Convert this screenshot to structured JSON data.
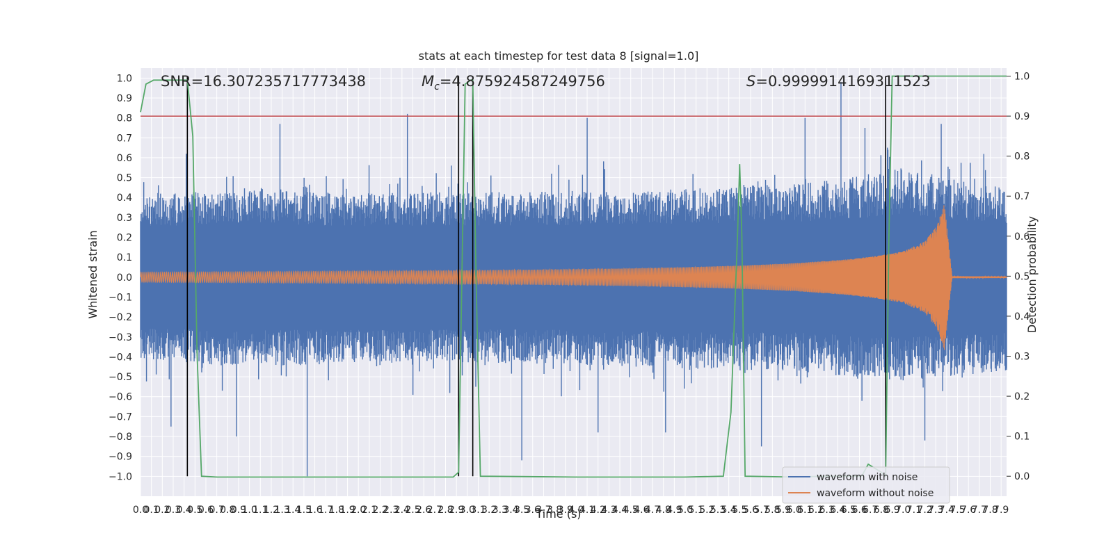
{
  "chart_data": {
    "type": "line",
    "title": "stats at each timestep for test data 8 [signal=1.0]",
    "xlabel": "Time (s)",
    "ylabel": "Whitened strain",
    "ylabel_right": "Detection probability",
    "xlim": [
      0.0,
      7.95
    ],
    "ylim": [
      -1.1,
      1.05
    ],
    "ylim_right": [
      -0.05,
      1.02
    ],
    "x_ticks": [
      "0.0",
      "0.1",
      "0.2",
      "0.3",
      "0.4",
      "0.5",
      "0.6",
      "0.7",
      "0.8",
      "0.9",
      "1.0",
      "1.1",
      "1.2",
      "1.3",
      "1.4",
      "1.5",
      "1.6",
      "1.7",
      "1.8",
      "1.9",
      "2.0",
      "2.1",
      "2.2",
      "2.3",
      "2.4",
      "2.5",
      "2.6",
      "2.7",
      "2.8",
      "2.9",
      "3.0",
      "3.1",
      "3.2",
      "3.3",
      "3.4",
      "3.5",
      "3.6",
      "3.7",
      "3.8",
      "3.9",
      "4.0",
      "4.1",
      "4.2",
      "4.3",
      "4.4",
      "4.5",
      "4.6",
      "4.7",
      "4.8",
      "4.9",
      "5.0",
      "5.1",
      "5.2",
      "5.3",
      "5.4",
      "5.5",
      "5.6",
      "5.7",
      "5.8",
      "5.9",
      "6.0",
      "6.1",
      "6.2",
      "6.3",
      "6.4",
      "6.5",
      "6.6",
      "6.7",
      "6.8",
      "6.9",
      "7.0",
      "7.1",
      "7.2",
      "7.3",
      "7.4",
      "7.5",
      "7.6",
      "7.7",
      "7.8",
      "7.9"
    ],
    "y_ticks_left": [
      "1.0",
      "0.9",
      "0.8",
      "0.7",
      "0.6",
      "0.5",
      "0.4",
      "0.3",
      "0.2",
      "0.1",
      "0.0",
      "−0.1",
      "−0.2",
      "−0.3",
      "−0.4",
      "−0.5",
      "−0.6",
      "−0.7",
      "−0.8",
      "−0.9",
      "−1.0"
    ],
    "y_ticks_right": [
      "1.0",
      "0.9",
      "0.8",
      "0.7",
      "0.6",
      "0.5",
      "0.4",
      "0.3",
      "0.2",
      "0.1",
      "0.0"
    ],
    "annotations": {
      "snr": "SNR=16.307235717773438",
      "mc": "=4.875924587249756",
      "mc_symbol": "M",
      "mc_sub": "c",
      "s": "=0.9999914169311523",
      "s_symbol": "S"
    },
    "legend": [
      "waveform with noise",
      "waveform without noise"
    ],
    "threshold_right": 0.9,
    "vertical_lines_x": [
      0.43,
      2.92,
      3.05,
      6.84
    ],
    "noise": {
      "name": "waveform with noise",
      "envelope_x": [
        0.0,
        1.0,
        2.0,
        3.0,
        4.0,
        5.0,
        6.0,
        6.5,
        7.0,
        7.4,
        7.95
      ],
      "envelope_top": [
        0.42,
        0.45,
        0.42,
        0.43,
        0.43,
        0.45,
        0.47,
        0.5,
        0.55,
        0.5,
        0.45
      ],
      "envelope_bottom": [
        -0.42,
        -0.45,
        -0.43,
        -0.43,
        -0.44,
        -0.46,
        -0.47,
        -0.5,
        -0.52,
        -0.5,
        -0.47
      ],
      "spikes": [
        [
          0.28,
          -0.75
        ],
        [
          0.42,
          0.62
        ],
        [
          0.88,
          -0.8
        ],
        [
          1.28,
          0.77
        ],
        [
          1.53,
          -1.0
        ],
        [
          2.45,
          0.82
        ],
        [
          3.5,
          -0.92
        ],
        [
          4.1,
          0.8
        ],
        [
          4.2,
          -0.78
        ],
        [
          4.82,
          -0.78
        ],
        [
          5.7,
          -0.85
        ],
        [
          6.1,
          0.8
        ],
        [
          6.43,
          0.98
        ],
        [
          6.65,
          0.75
        ],
        [
          7.2,
          -0.82
        ],
        [
          7.35,
          0.77
        ]
      ]
    },
    "signal": {
      "name": "waveform without noise",
      "amplitude_x": [
        0.0,
        1.0,
        2.0,
        3.0,
        4.0,
        4.5,
        5.0,
        5.5,
        6.0,
        6.5,
        6.8,
        7.0,
        7.2,
        7.3,
        7.35,
        7.38,
        7.45,
        7.95
      ],
      "amplitude": [
        0.025,
        0.027,
        0.03,
        0.034,
        0.04,
        0.044,
        0.05,
        0.058,
        0.07,
        0.09,
        0.11,
        0.13,
        0.18,
        0.25,
        0.32,
        0.37,
        0.005,
        0.004
      ]
    },
    "detection": {
      "x": [
        0.0,
        0.05,
        0.12,
        0.2,
        0.3,
        0.43,
        0.48,
        0.52,
        0.56,
        0.7,
        1.5,
        2.5,
        2.87,
        2.92,
        2.98,
        3.03,
        3.05,
        3.08,
        3.12,
        4.0,
        5.0,
        5.35,
        5.42,
        5.48,
        5.5,
        5.52,
        5.55,
        6.0,
        6.3,
        6.5,
        6.62,
        6.68,
        6.8,
        6.84,
        6.87,
        6.9,
        6.95,
        7.5,
        7.95
      ],
      "y": [
        0.91,
        0.98,
        0.99,
        0.99,
        0.99,
        0.99,
        0.85,
        0.3,
        0.0,
        -0.002,
        -0.002,
        -0.002,
        -0.002,
        0.01,
        0.98,
        0.99,
        0.99,
        0.5,
        0.0,
        -0.002,
        -0.002,
        0.0,
        0.16,
        0.6,
        0.78,
        0.6,
        0.0,
        -0.002,
        0.0,
        0.0,
        0.0,
        0.03,
        0.01,
        0.0,
        0.6,
        1.0,
        1.0,
        1.0,
        1.0
      ]
    },
    "colors": {
      "noise": "#4c72b0",
      "signal": "#dd8452",
      "detection": "#55a868",
      "threshold": "#c44e52",
      "vline": "#000000",
      "plot_bg": "#eaeaf2",
      "grid": "#ffffff"
    }
  }
}
